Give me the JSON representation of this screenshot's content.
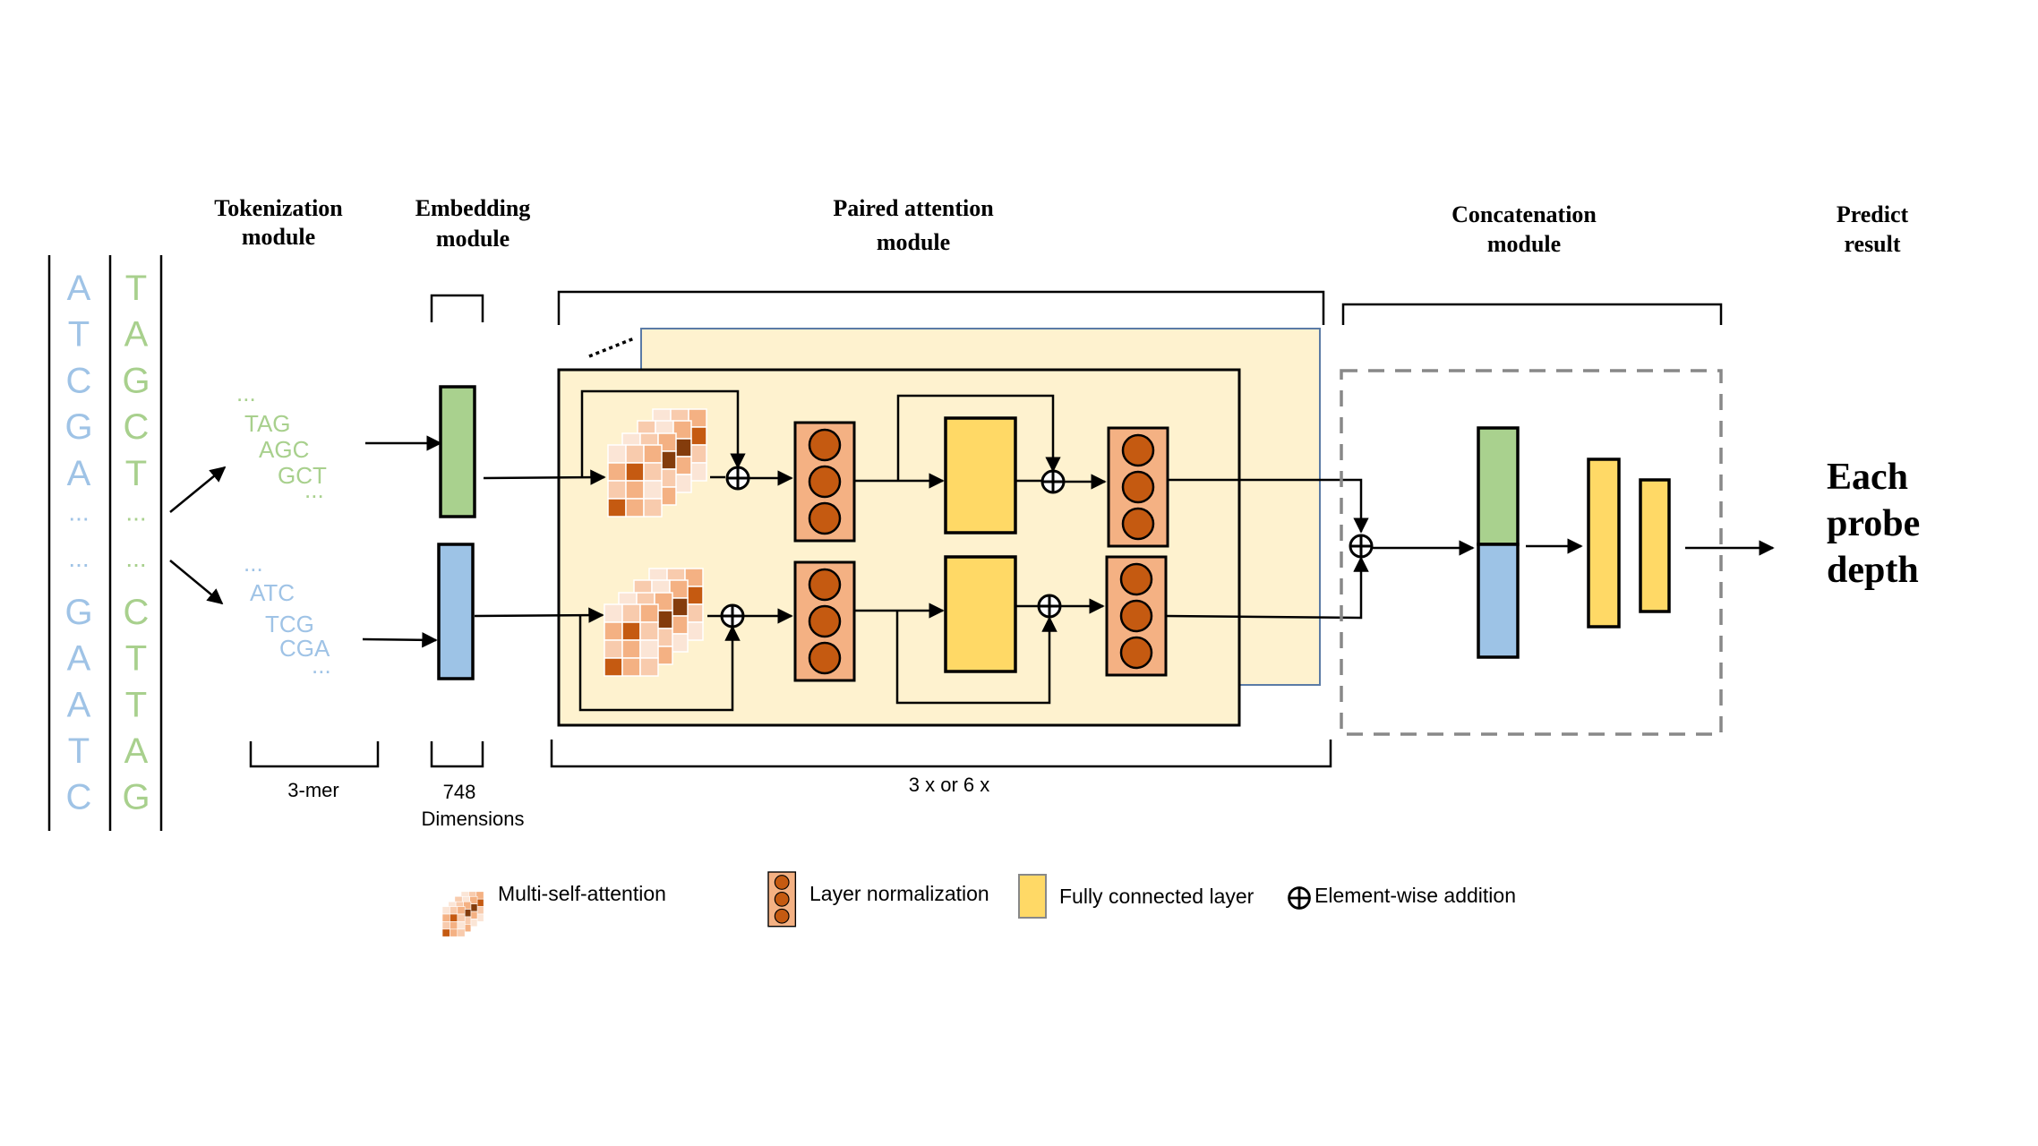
{
  "headers": {
    "tokenization": [
      "Tokenization",
      "module"
    ],
    "embedding": [
      "Embedding",
      "module"
    ],
    "paired_attention": [
      "Paired attention",
      "module"
    ],
    "concatenation": [
      "Concatenation",
      "module"
    ],
    "predict": [
      "Predict",
      "result"
    ]
  },
  "sequence": {
    "strand_a": [
      "A",
      "T",
      "C",
      "G",
      "A",
      "...",
      "...",
      "G",
      "A",
      "A",
      "T",
      "C"
    ],
    "strand_b": [
      "T",
      "A",
      "G",
      "C",
      "T",
      "...",
      "...",
      "C",
      "T",
      "T",
      "A",
      "G"
    ]
  },
  "kmers": {
    "upper": [
      "...",
      "TAG",
      "AGC",
      "GCT",
      "..."
    ],
    "lower": [
      "...",
      "ATC",
      "TCG",
      "CGA",
      "..."
    ]
  },
  "labels": {
    "kmer_size": "3-mer",
    "dims_number": "748",
    "dims_word": "Dimensions",
    "repeat": "3 x or 6 x",
    "output": [
      "Each",
      "probe",
      "depth"
    ]
  },
  "legend": {
    "msa": "Multi-self-attention",
    "layer_norm": "Layer normalization",
    "fc": "Fully connected layer",
    "add": "Element-wise addition"
  },
  "colors": {
    "nucleotide_blue": "#9fc3e6",
    "nucleotide_green": "#a8d08d",
    "embedding_green": "#a9d18e",
    "embedding_blue": "#9dc3e6",
    "panel_fill": "#fef2cf",
    "fc_yellow": "#ffd966",
    "norm_fill": "#f4b183",
    "norm_circle": "#c55a11"
  }
}
